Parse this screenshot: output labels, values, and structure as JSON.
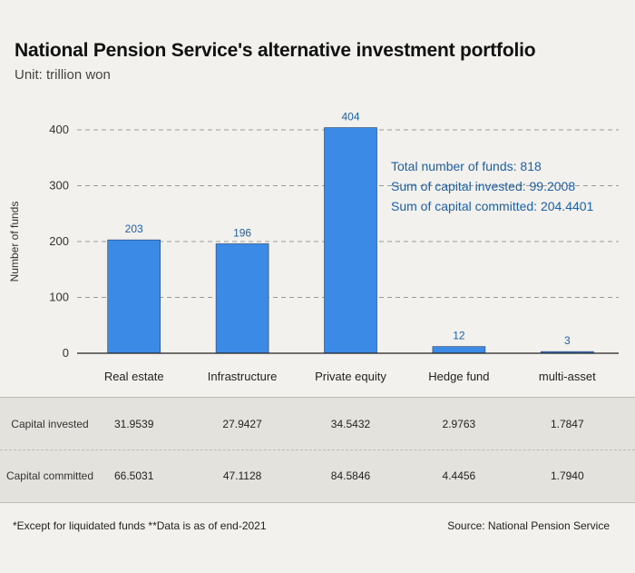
{
  "title": "National Pension Service's alternative investment portfolio",
  "subtitle": "Unit: trillion won",
  "chart_data": {
    "type": "bar",
    "categories": [
      "Real estate",
      "Infrastructure",
      "Private equity",
      "Hedge fund",
      "multi-asset"
    ],
    "values": [
      203,
      196,
      404,
      12,
      3
    ],
    "ylabel": "Number of funds",
    "ylim": [
      0,
      400
    ],
    "yticks": [
      0,
      100,
      200,
      300,
      400
    ],
    "grid": true,
    "bar_color": "#3b8ae6"
  },
  "summary": {
    "line1": "Total number of funds: 818",
    "line2": "Sum of capital invested: 99.2008",
    "line3": "Sum of capital committed: 204.4401"
  },
  "table": {
    "rows": [
      {
        "header": "Capital invested",
        "values": [
          "31.9539",
          "27.9427",
          "34.5432",
          "2.9763",
          "1.7847"
        ]
      },
      {
        "header": "Capital committed",
        "values": [
          "66.5031",
          "47.1128",
          "84.5846",
          "4.4456",
          "1.7940"
        ]
      }
    ]
  },
  "footnote": "*Except for liquidated funds  **Data is as of end-2021",
  "source": "Source: National Pension Service"
}
